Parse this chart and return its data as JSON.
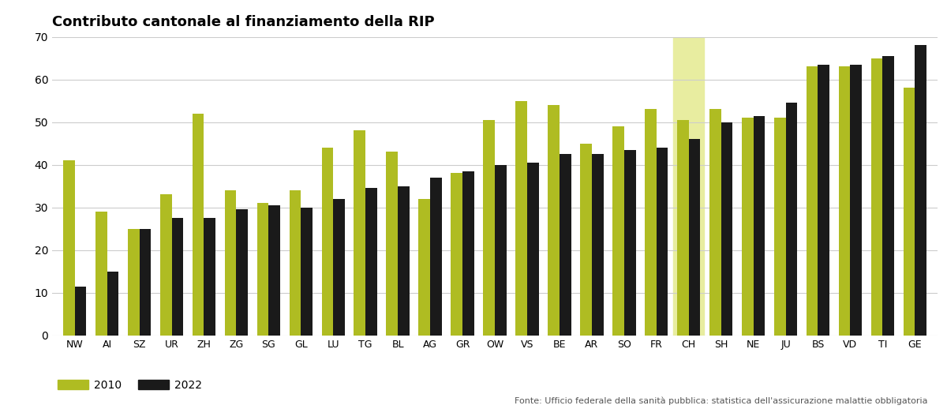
{
  "title": "Contributo cantonale al finanziamento della RIP",
  "categories": [
    "NW",
    "AI",
    "SZ",
    "UR",
    "ZH",
    "ZG",
    "SG",
    "GL",
    "LU",
    "TG",
    "BL",
    "AG",
    "GR",
    "OW",
    "VS",
    "BE",
    "AR",
    "SO",
    "FR",
    "CH",
    "SH",
    "NE",
    "JU",
    "BS",
    "VD",
    "TI",
    "GE"
  ],
  "values_2010": [
    41,
    29,
    25,
    33,
    52,
    34,
    31,
    34,
    44,
    48,
    43,
    32,
    38,
    50.5,
    55,
    54,
    45,
    49,
    53,
    50.5,
    53,
    51,
    51,
    63,
    63,
    65,
    58
  ],
  "values_2022": [
    11.5,
    15,
    25,
    27.5,
    27.5,
    29.5,
    30.5,
    30,
    32,
    34.5,
    35,
    37,
    38.5,
    40,
    40.5,
    42.5,
    42.5,
    43.5,
    44,
    46,
    50,
    51.5,
    54.5,
    63.5,
    63.5,
    65.5,
    68
  ],
  "color_2010": "#AFBC22",
  "color_2022": "#1a1a1a",
  "highlight_index": 19,
  "highlight_color": "#e8eda0",
  "ylim": [
    0,
    70
  ],
  "yticks": [
    0,
    10,
    20,
    30,
    40,
    50,
    60,
    70
  ],
  "footnote": "Fonte: Ufficio federale della sanità pubblica: statistica dell'assicurazione malattie obbligatoria",
  "background_color": "#ffffff",
  "grid_color": "#cccccc"
}
